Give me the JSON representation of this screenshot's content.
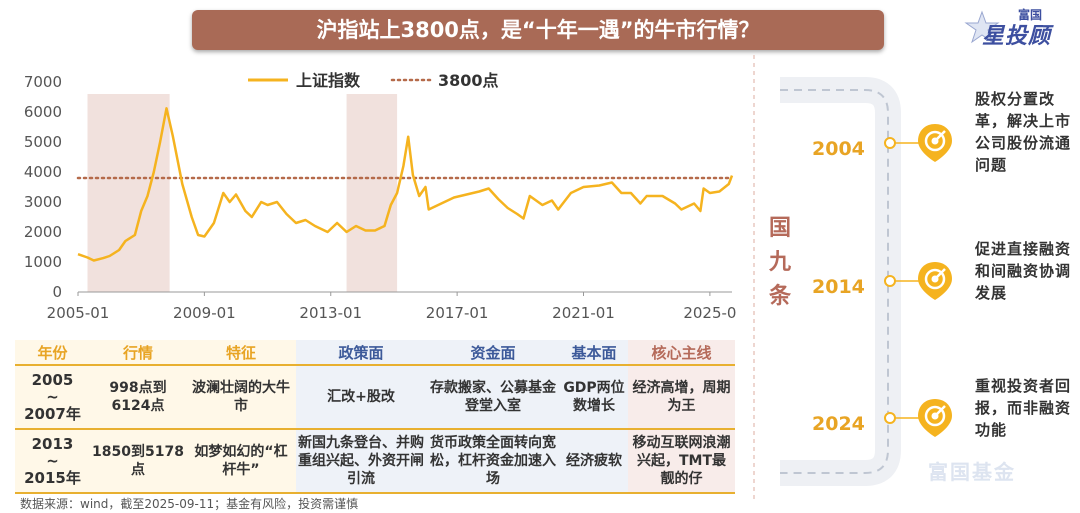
{
  "title": "沪指站上3800点，是“十年一遇”的牛市行情？",
  "brand": {
    "small": "富国",
    "main": "星投顾"
  },
  "chart_data": {
    "type": "line",
    "ylim": [
      0,
      7000
    ],
    "yticks": [
      "0",
      "1000",
      "2000",
      "3000",
      "4000",
      "5000",
      "6000",
      "7000"
    ],
    "xticks": [
      "2005-01",
      "2009-01",
      "2013-01",
      "2017-01",
      "2021-01",
      "2025-0"
    ],
    "xtick_years": [
      2005,
      2009,
      2013,
      2017,
      2021,
      2025
    ],
    "series": [
      {
        "name": "上证指数",
        "color": "#f5b31f",
        "x": [
          2005.0,
          2005.3,
          2005.5,
          2005.8,
          2006.0,
          2006.3,
          2006.5,
          2006.8,
          2007.0,
          2007.2,
          2007.4,
          2007.6,
          2007.8,
          2008.0,
          2008.3,
          2008.6,
          2008.8,
          2009.0,
          2009.3,
          2009.6,
          2009.8,
          2010.0,
          2010.3,
          2010.5,
          2010.8,
          2011.0,
          2011.3,
          2011.6,
          2011.9,
          2012.2,
          2012.5,
          2012.9,
          2013.2,
          2013.5,
          2013.8,
          2014.1,
          2014.4,
          2014.7,
          2014.9,
          2015.1,
          2015.3,
          2015.45,
          2015.6,
          2015.8,
          2016.0,
          2016.1,
          2016.5,
          2016.9,
          2017.3,
          2017.7,
          2018.0,
          2018.3,
          2018.6,
          2018.9,
          2019.1,
          2019.3,
          2019.7,
          2020.0,
          2020.2,
          2020.6,
          2021.0,
          2021.5,
          2021.9,
          2022.2,
          2022.5,
          2022.8,
          2023.0,
          2023.5,
          2023.9,
          2024.1,
          2024.5,
          2024.7,
          2024.8,
          2025.0,
          2025.3,
          2025.6,
          2025.7
        ],
        "y": [
          1260,
          1150,
          1050,
          1130,
          1200,
          1400,
          1700,
          1900,
          2700,
          3200,
          4000,
          5000,
          6124,
          5200,
          3600,
          2500,
          1900,
          1850,
          2300,
          3300,
          3000,
          3250,
          2700,
          2500,
          3000,
          2900,
          3000,
          2600,
          2300,
          2400,
          2200,
          2000,
          2300,
          2000,
          2200,
          2050,
          2050,
          2200,
          2900,
          3300,
          4200,
          5178,
          3900,
          3200,
          3500,
          2750,
          2950,
          3150,
          3250,
          3350,
          3450,
          3100,
          2800,
          2600,
          2450,
          3200,
          2900,
          3050,
          2750,
          3300,
          3500,
          3550,
          3650,
          3300,
          3300,
          2950,
          3200,
          3200,
          2950,
          2750,
          2950,
          2700,
          3450,
          3300,
          3350,
          3600,
          3880
        ]
      }
    ],
    "reference_lines": [
      {
        "name": "3800点",
        "y": 3800,
        "color": "#b56a4a"
      }
    ],
    "shaded_periods": [
      [
        2005.3,
        2007.9
      ],
      [
        2013.5,
        2015.1
      ]
    ],
    "legend": "top"
  },
  "table": {
    "headers": [
      "年份",
      "行情",
      "特征",
      "政策面",
      "资金面",
      "基本面",
      "核心主线"
    ],
    "rows": [
      {
        "year_start": "2005",
        "year_sep": "~",
        "year_end": "2007年",
        "market": "998点到6124点",
        "feature": "波澜壮阔的大牛市",
        "policy": "汇改+股改",
        "capital": "存款搬家、公募基金登堂入室",
        "fundamental": "GDP两位数增长",
        "theme": "经济高增，周期为王"
      },
      {
        "year_start": "2013",
        "year_sep": "~",
        "year_end": "2015年",
        "market": "1850到5178点",
        "feature": "如梦如幻的“杠杆牛”",
        "policy": "新国九条登台、并购重组兴起、外资开闸引流",
        "capital": "货币政策全面转向宽松，杠杆资金加速入场",
        "fundamental": "经济疲软",
        "theme": "移动互联网浪潮兴起，TMT最靓的仔"
      }
    ]
  },
  "source": "数据来源：wind，截至2025-09-11；基金有风险，投资需谨慎",
  "timeline": {
    "label": "国九条",
    "items": [
      {
        "year": "2004",
        "text": "股权分置改革，解决上市公司股份流通问题"
      },
      {
        "year": "2014",
        "text": "促进直接融资和间融资协调发展"
      },
      {
        "year": "2024",
        "text": "重视投资者回报，而非融资功能"
      }
    ]
  },
  "watermark": "富国基金"
}
